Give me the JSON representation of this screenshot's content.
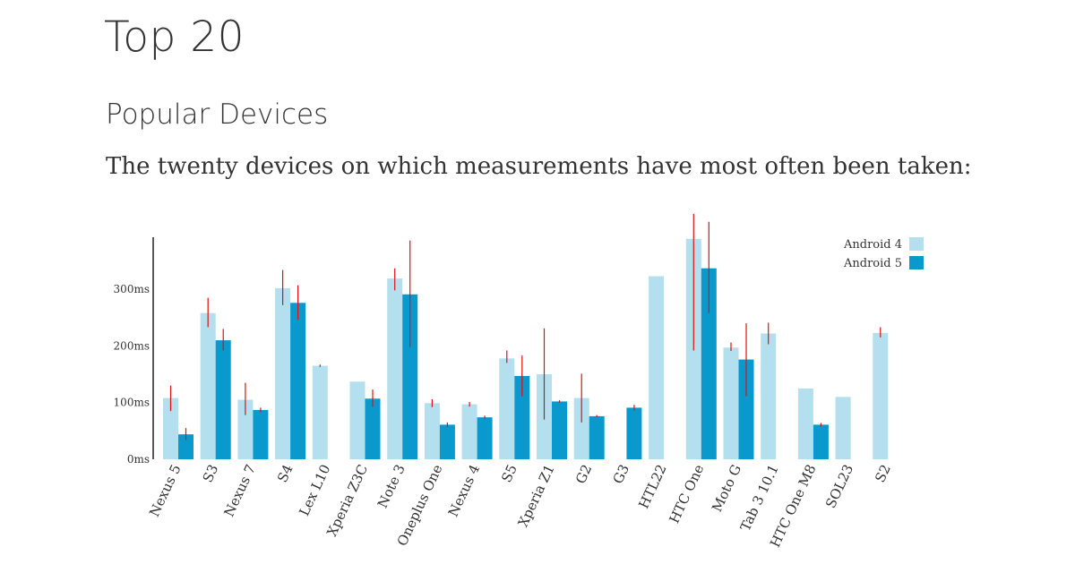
{
  "page": {
    "title": "Top 20",
    "subtitle": "Popular Devices",
    "intro": "The twenty devices on which measurements have most often been taken:"
  },
  "chart_data": {
    "type": "bar",
    "title": "",
    "xlabel": "",
    "ylabel": "",
    "ylim": [
      0,
      400
    ],
    "y_ticks": [
      0,
      100,
      200,
      300
    ],
    "y_tick_labels": [
      "0ms",
      "100ms",
      "200ms",
      "300ms"
    ],
    "legend_position": "top-right",
    "grid": false,
    "colors": {
      "android4": "#b3dfef",
      "android5": "#0a99cc",
      "error": "#dd1111",
      "axis": "#222222"
    },
    "categories": [
      "Nexus 5",
      "S3",
      "Nexus 7",
      "S4",
      "Lex L10",
      "Xperia Z3C",
      "Note 3",
      "Oneplus One",
      "Nexus 4",
      "S5",
      "Xperia Z1",
      "G2",
      "G3",
      "HTL22",
      "HTC One",
      "Moto G",
      "Tab 3 10.1",
      "HTC One M8",
      "SOL23",
      "S2"
    ],
    "series": [
      {
        "name": "Android 4",
        "values": [
          108,
          258,
          105,
          302,
          165,
          137,
          319,
          99,
          97,
          178,
          150,
          108,
          null,
          323,
          389,
          197,
          222,
          125,
          110,
          223
        ],
        "error_low": [
          85,
          233,
          78,
          272,
          163,
          null,
          298,
          92,
          93,
          170,
          70,
          65,
          null,
          null,
          192,
          191,
          203,
          null,
          null,
          215
        ],
        "error_high": [
          130,
          285,
          135,
          334,
          167,
          null,
          337,
          106,
          101,
          192,
          231,
          151,
          null,
          null,
          433,
          206,
          241,
          null,
          null,
          233
        ]
      },
      {
        "name": "Android 5",
        "values": [
          44,
          210,
          87,
          276,
          null,
          107,
          291,
          61,
          74,
          147,
          102,
          76,
          91,
          null,
          337,
          176,
          null,
          61,
          null,
          null
        ],
        "error_low": [
          34,
          192,
          83,
          246,
          null,
          93,
          198,
          57,
          71,
          111,
          100,
          74,
          86,
          null,
          258,
          111,
          null,
          58,
          null,
          null
        ],
        "error_high": [
          55,
          230,
          91,
          307,
          null,
          123,
          386,
          65,
          77,
          183,
          104,
          78,
          96,
          null,
          419,
          240,
          null,
          64,
          null,
          null
        ]
      }
    ]
  }
}
